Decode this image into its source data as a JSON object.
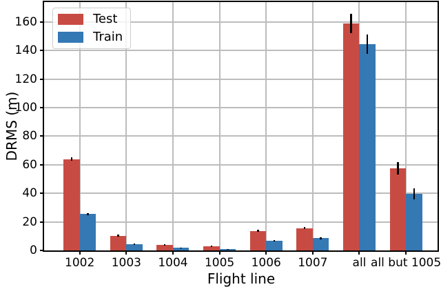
{
  "figure": {
    "background": "#ffffff",
    "axis_color": "#000000"
  },
  "chart_data": {
    "type": "bar",
    "title": "",
    "xlabel": "Flight line",
    "ylabel": "DRMS (m)",
    "categories": [
      "1002",
      "1003",
      "1004",
      "1005",
      "1006",
      "1007",
      "all",
      "all but 1005"
    ],
    "series": [
      {
        "name": "Test",
        "color": "#c84b43",
        "values": [
          64,
          10.3,
          4.1,
          2.9,
          13.7,
          15.6,
          159,
          57.7
        ],
        "errors": [
          1.1,
          0.7,
          0.5,
          0.3,
          0.7,
          0.8,
          6.8,
          4.3
        ]
      },
      {
        "name": "Train",
        "color": "#3478b4",
        "values": [
          25.4,
          4.4,
          1.7,
          0.8,
          6.9,
          8.5,
          144.7,
          39.7
        ],
        "errors": [
          0.9,
          0.4,
          0.3,
          0.2,
          0.5,
          0.6,
          6.8,
          3.7
        ]
      }
    ],
    "ylim": [
      0,
      174
    ],
    "yticks": [
      0,
      20,
      40,
      60,
      80,
      100,
      120,
      140,
      160
    ],
    "grid": true,
    "grid_color": "#bcbcbc",
    "error_bar_color": "#000000",
    "legend_position": "upper left"
  }
}
